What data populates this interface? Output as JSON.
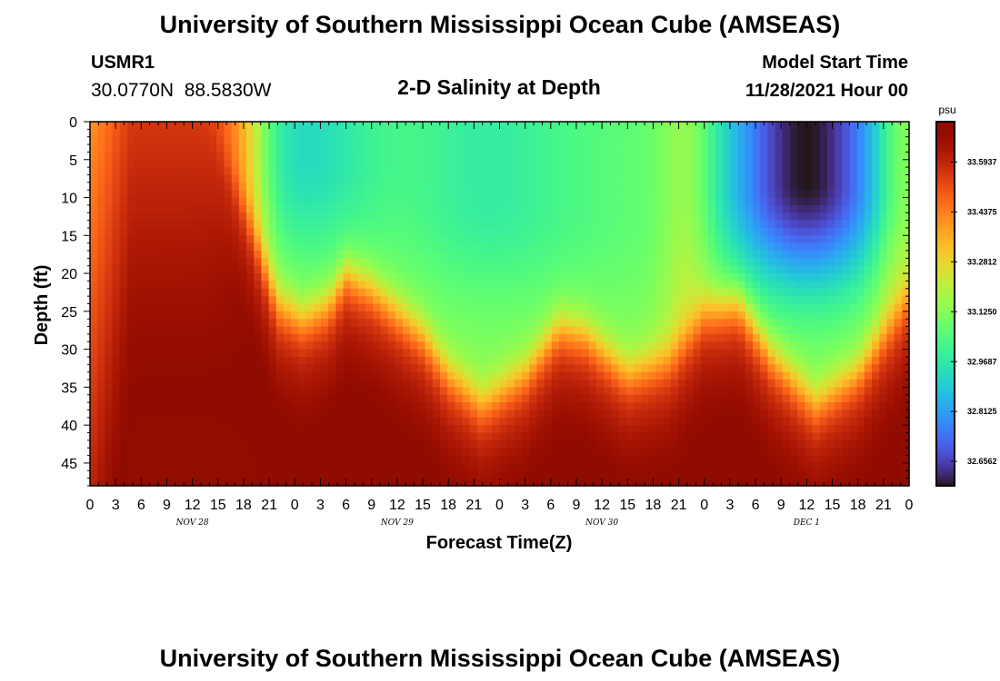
{
  "chart_data": {
    "type": "heatmap",
    "title": "University of Southern Mississippi Ocean Cube (AMSEAS)",
    "subtitle": "2-D Salinity at Depth",
    "station": {
      "id": "USMR1",
      "location": "30.0770N  88.5830W"
    },
    "model_start": {
      "label": "Model Start Time",
      "value": "11/28/2021 Hour 00"
    },
    "xlabel": "Forecast Time(Z)",
    "ylabel": "Depth (ft)",
    "x_hours_range": [
      0,
      96
    ],
    "x_tick_step_hours": 3,
    "x_tick_labels": [
      "0",
      "3",
      "6",
      "9",
      "12",
      "15",
      "18",
      "21",
      "0",
      "3",
      "6",
      "9",
      "12",
      "15",
      "18",
      "21",
      "0",
      "3",
      "6",
      "9",
      "12",
      "15",
      "18",
      "21",
      "0",
      "3",
      "6",
      "9",
      "12",
      "15",
      "18",
      "21",
      "0"
    ],
    "day_labels": [
      {
        "text": "NOV 28",
        "hour": 12
      },
      {
        "text": "NOV 29",
        "hour": 36
      },
      {
        "text": "NOV 30",
        "hour": 60
      },
      {
        "text": "DEC 1",
        "hour": 84
      }
    ],
    "ylim": [
      0,
      48
    ],
    "y_ticks": [
      0,
      5,
      10,
      15,
      20,
      25,
      30,
      35,
      40,
      45
    ],
    "colorbar": {
      "unit": "psu",
      "range": [
        32.58,
        33.72
      ],
      "tick_labels": [
        "33.5937",
        "33.4375",
        "33.2812",
        "33.1250",
        "32.9687",
        "32.8125",
        "32.6562"
      ],
      "tick_values": [
        33.5937,
        33.4375,
        33.28125,
        33.125,
        32.96875,
        32.8125,
        32.65625
      ]
    },
    "interface_depth_ft": [
      {
        "hour": 0,
        "depth": 0
      },
      {
        "hour": 6,
        "depth": 0
      },
      {
        "hour": 14,
        "depth": 0
      },
      {
        "hour": 19,
        "depth": 14
      },
      {
        "hour": 22,
        "depth": 24
      },
      {
        "hour": 25,
        "depth": 26
      },
      {
        "hour": 28,
        "depth": 24
      },
      {
        "hour": 30,
        "depth": 20
      },
      {
        "hour": 33,
        "depth": 22
      },
      {
        "hour": 36,
        "depth": 25
      },
      {
        "hour": 39,
        "depth": 28
      },
      {
        "hour": 42,
        "depth": 33
      },
      {
        "hour": 46,
        "depth": 37
      },
      {
        "hour": 51,
        "depth": 33
      },
      {
        "hour": 55,
        "depth": 27
      },
      {
        "hour": 58,
        "depth": 28
      },
      {
        "hour": 63,
        "depth": 33
      },
      {
        "hour": 68,
        "depth": 31
      },
      {
        "hour": 72,
        "depth": 25
      },
      {
        "hour": 76,
        "depth": 24
      },
      {
        "hour": 80,
        "depth": 31
      },
      {
        "hour": 85,
        "depth": 37
      },
      {
        "hour": 90,
        "depth": 33
      },
      {
        "hour": 96,
        "depth": 23
      }
    ],
    "surface_fresh_cores": [
      {
        "hour": 25,
        "depth": 5,
        "salinity": 32.93
      },
      {
        "hour": 46,
        "depth": 10,
        "salinity": 32.99
      },
      {
        "hour": 60,
        "depth": 12,
        "salinity": 33.07
      },
      {
        "hour": 84,
        "depth": 8,
        "salinity": 32.58
      }
    ],
    "green_front_hours": [
      {
        "hour": 18,
        "salinity": 33.32
      },
      {
        "hour": 70,
        "salinity": 33.24
      },
      {
        "hour": 95,
        "salinity": 33.26
      }
    ],
    "deep_max_salinity": 33.71,
    "left_edge_salinity": 33.4
  },
  "footer_title": "University of Southern Mississippi Ocean Cube (AMSEAS)"
}
